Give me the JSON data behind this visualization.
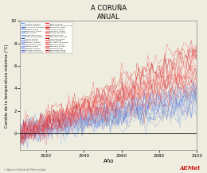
{
  "title": "A CORUÑA",
  "subtitle": "ANUAL",
  "xlabel": "Año",
  "ylabel": "Cambio de la temperatura máxima (°C)",
  "xlim": [
    2006,
    2100
  ],
  "ylim": [
    -1.5,
    10
  ],
  "yticks": [
    0,
    2,
    4,
    6,
    8,
    10
  ],
  "xticks": [
    2020,
    2040,
    2060,
    2080,
    2100
  ],
  "year_start": 2006,
  "year_end": 2100,
  "n_rcp45": 19,
  "n_rcp85": 19,
  "rcp45_colors": [
    "#6699FF",
    "#99BBFF",
    "#3366CC",
    "#4477DD",
    "#88AAEE",
    "#5588DD",
    "#7799EE",
    "#AABBFF",
    "#2255BB",
    "#6688EE",
    "#99AADD",
    "#4466CC",
    "#8899FF",
    "#5577DD",
    "#3355BB",
    "#7788EE",
    "#BBCCFF",
    "#99AABB",
    "#DDBBAA"
  ],
  "rcp85_colors": [
    "#FF3333",
    "#FF6666",
    "#CC0000",
    "#EE2222",
    "#FF8888",
    "#DD1111",
    "#FF4444",
    "#FF9999",
    "#BB0000",
    "#EE5555",
    "#FF7777",
    "#CC2222",
    "#FF5555",
    "#DD3333",
    "#BB1111",
    "#FF6677",
    "#FFAAAA",
    "#EE3344",
    "#DD4455"
  ],
  "background_color": "#EEEDE0",
  "noise_amplitude": 0.55,
  "rcp45_trend_max": 3.2,
  "rcp85_trend_max": 6.0
}
